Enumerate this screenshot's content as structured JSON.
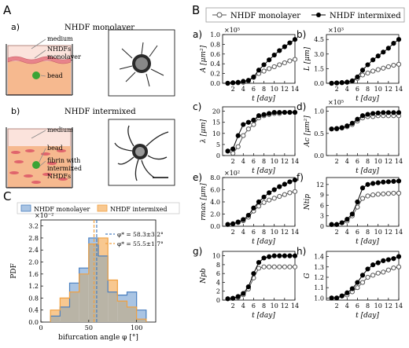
{
  "panels": {
    "A": "A",
    "B": "B",
    "C": "C",
    "a": "a)",
    "b": "b)",
    "c": "c)",
    "d": "d)",
    "e": "e)",
    "f": "f)",
    "g": "g)",
    "h": "h)"
  },
  "schematic": {
    "monolayer_title": "NHDF monolayer",
    "intermixed_title": "NHDF intermixed",
    "mono_labels": [
      "medium",
      "NHDFs",
      "monolayer",
      "bead"
    ],
    "inter_labels": [
      "medium",
      "bead",
      "fibrin with",
      "intermixed",
      "NHDFs"
    ]
  },
  "legend_B": [
    {
      "name": "NHDF monolayer",
      "marker": "open"
    },
    {
      "name": "NHDF intermixed",
      "marker": "filled"
    }
  ],
  "colors": {
    "monolayer_hist": "#a9c4e3",
    "monolayer_edge": "#4a7fbf",
    "intermixed_hist": "#f8c890",
    "intermixed_edge": "#f0a040",
    "overlap": "#b9b4a6",
    "line_open": "#555555",
    "line_filled": "#000000"
  },
  "chart_data": [
    {
      "panel": "a)",
      "type": "line",
      "ylabel": "A [μm²]",
      "exponent": "×10⁵",
      "xlabel": "t [day]",
      "xlim": [
        0,
        14
      ],
      "ylim": [
        0,
        1.0
      ],
      "xticks": [
        2,
        4,
        6,
        8,
        10,
        12,
        14
      ],
      "yticks": [
        0.0,
        0.2,
        0.4,
        0.6,
        0.8,
        1.0
      ],
      "ytick_labels": [
        "0.0",
        "0.2",
        "0.4",
        "0.6",
        "0.8",
        "1.0"
      ],
      "x": [
        1,
        2,
        3,
        4,
        5,
        6,
        7,
        8,
        9,
        10,
        11,
        12,
        13,
        14
      ],
      "series": [
        {
          "name": "NHDF monolayer",
          "values": [
            0.0,
            0.01,
            0.01,
            0.02,
            0.05,
            0.12,
            0.2,
            0.25,
            0.3,
            0.34,
            0.38,
            0.42,
            0.46,
            0.49
          ]
        },
        {
          "name": "NHDF intermixed",
          "values": [
            0.0,
            0.01,
            0.02,
            0.04,
            0.06,
            0.13,
            0.27,
            0.38,
            0.48,
            0.58,
            0.67,
            0.75,
            0.83,
            0.9
          ]
        }
      ]
    },
    {
      "panel": "b)",
      "type": "line",
      "ylabel": "L [μm]",
      "exponent": "×10³",
      "xlabel": "t [day]",
      "xlim": [
        0,
        14
      ],
      "ylim": [
        0,
        5.0
      ],
      "xticks": [
        2,
        4,
        6,
        8,
        10,
        12,
        14
      ],
      "yticks": [
        0.0,
        1.5,
        3.0,
        4.5
      ],
      "ytick_labels": [
        "0.0",
        "1.5",
        "3.0",
        "4.5"
      ],
      "x": [
        1,
        2,
        3,
        4,
        5,
        6,
        7,
        8,
        9,
        10,
        11,
        12,
        13,
        14
      ],
      "series": [
        {
          "name": "NHDF monolayer",
          "values": [
            0.0,
            0.03,
            0.06,
            0.1,
            0.2,
            0.5,
            0.85,
            1.05,
            1.25,
            1.4,
            1.55,
            1.7,
            1.85,
            1.95
          ]
        },
        {
          "name": "NHDF intermixed",
          "values": [
            0.0,
            0.03,
            0.07,
            0.12,
            0.25,
            0.65,
            1.35,
            1.9,
            2.4,
            2.8,
            3.2,
            3.6,
            4.1,
            4.5
          ]
        }
      ]
    },
    {
      "panel": "c)",
      "type": "line",
      "ylabel": "λ [μm]",
      "exponent": "",
      "xlabel": "t [day]",
      "xlim": [
        0,
        14
      ],
      "ylim": [
        0,
        22
      ],
      "xticks": [
        2,
        4,
        6,
        8,
        10,
        12,
        14
      ],
      "yticks": [
        0,
        5,
        10,
        15,
        20
      ],
      "ytick_labels": [
        "0",
        "5",
        "10",
        "15",
        "20"
      ],
      "x": [
        1,
        2,
        3,
        4,
        5,
        6,
        7,
        8,
        9,
        10,
        11,
        12,
        13,
        14
      ],
      "series": [
        {
          "name": "NHDF monolayer",
          "values": [
            2,
            1,
            4,
            9,
            12,
            14,
            17,
            18,
            18.5,
            19,
            19,
            19.5,
            19.5,
            19.5
          ]
        },
        {
          "name": "NHDF intermixed",
          "values": [
            2,
            3,
            9,
            14,
            15,
            16,
            18,
            18.5,
            19,
            19.5,
            19.5,
            19.5,
            19.5,
            19.5
          ]
        }
      ]
    },
    {
      "panel": "d)",
      "type": "line",
      "ylabel": "Ac [μm²]",
      "exponent": "×10⁵",
      "xlabel": "t [day]",
      "xlim": [
        0,
        14
      ],
      "ylim": [
        0,
        1.1
      ],
      "xticks": [
        2,
        4,
        6,
        8,
        10,
        12,
        14
      ],
      "yticks": [
        0.0,
        0.5,
        1.0
      ],
      "ytick_labels": [
        "0.0",
        "0.5",
        "1.0"
      ],
      "x": [
        1,
        2,
        3,
        4,
        5,
        6,
        7,
        8,
        9,
        10,
        11,
        12,
        13,
        14
      ],
      "series": [
        {
          "name": "NHDF monolayer",
          "values": [
            0.6,
            0.6,
            0.62,
            0.65,
            0.7,
            0.78,
            0.85,
            0.88,
            0.88,
            0.9,
            0.9,
            0.9,
            0.9,
            0.9
          ]
        },
        {
          "name": "NHDF intermixed",
          "values": [
            0.6,
            0.61,
            0.63,
            0.67,
            0.73,
            0.82,
            0.9,
            0.93,
            0.95,
            0.96,
            0.97,
            0.97,
            0.97,
            0.97
          ]
        }
      ]
    },
    {
      "panel": "e)",
      "type": "line",
      "ylabel": "rmax [μm]",
      "exponent": "×10²",
      "xlabel": "t [day]",
      "xlim": [
        0,
        14
      ],
      "ylim": [
        0,
        8.0
      ],
      "xticks": [
        2,
        4,
        6,
        8,
        10,
        12,
        14
      ],
      "yticks": [
        0.0,
        2.0,
        4.0,
        6.0,
        8.0
      ],
      "ytick_labels": [
        "0.0",
        "2.0",
        "4.0",
        "6.0",
        "8.0"
      ],
      "x": [
        1,
        2,
        3,
        4,
        5,
        6,
        7,
        8,
        9,
        10,
        11,
        12,
        13,
        14
      ],
      "series": [
        {
          "name": "NHDF monolayer",
          "values": [
            0.3,
            0.4,
            0.6,
            0.9,
            1.5,
            2.5,
            3.3,
            3.9,
            4.3,
            4.6,
            4.9,
            5.2,
            5.5,
            5.7
          ]
        },
        {
          "name": "NHDF intermixed",
          "values": [
            0.3,
            0.4,
            0.7,
            1.1,
            1.8,
            3.0,
            4.0,
            4.8,
            5.5,
            6.0,
            6.5,
            6.9,
            7.3,
            7.6
          ]
        }
      ]
    },
    {
      "panel": "f)",
      "type": "line",
      "ylabel": "Ntip",
      "exponent": "",
      "xlabel": "t [day]",
      "xlim": [
        0,
        14
      ],
      "ylim": [
        0,
        14
      ],
      "xticks": [
        2,
        4,
        6,
        8,
        10,
        12,
        14
      ],
      "yticks": [
        0,
        3,
        6,
        9,
        12
      ],
      "ytick_labels": [
        "0",
        "3",
        "6",
        "9",
        "12"
      ],
      "x": [
        1,
        2,
        3,
        4,
        5,
        6,
        7,
        8,
        9,
        10,
        11,
        12,
        13,
        14
      ],
      "series": [
        {
          "name": "NHDF monolayer",
          "values": [
            0.5,
            0.5,
            1,
            1.5,
            3,
            5.5,
            8,
            8.7,
            9,
            9.2,
            9.3,
            9.4,
            9.5,
            9.5
          ]
        },
        {
          "name": "NHDF intermixed",
          "values": [
            0.5,
            0.5,
            1,
            2,
            3.5,
            7,
            11,
            12,
            12.3,
            12.5,
            12.7,
            12.8,
            12.9,
            13
          ]
        }
      ]
    },
    {
      "panel": "g)",
      "type": "line",
      "ylabel": "Npb",
      "exponent": "",
      "xlabel": "t [day]",
      "xlim": [
        0,
        14
      ],
      "ylim": [
        0,
        11
      ],
      "xticks": [
        2,
        4,
        6,
        8,
        10,
        12,
        14
      ],
      "yticks": [
        0,
        2,
        4,
        6,
        8,
        10
      ],
      "ytick_labels": [
        "0",
        "2",
        "4",
        "6",
        "8",
        "10"
      ],
      "x": [
        1,
        2,
        3,
        4,
        5,
        6,
        7,
        8,
        9,
        10,
        11,
        12,
        13,
        14
      ],
      "series": [
        {
          "name": "NHDF monolayer",
          "values": [
            0.3,
            0.4,
            0.6,
            1.2,
            2.5,
            5,
            7.2,
            7.5,
            7.5,
            7.5,
            7.5,
            7.5,
            7.5,
            7.5
          ]
        },
        {
          "name": "NHDF intermixed",
          "values": [
            0.3,
            0.4,
            0.8,
            1.5,
            3.0,
            6,
            8.5,
            9.5,
            9.8,
            10,
            10,
            10,
            10,
            10
          ]
        }
      ]
    },
    {
      "panel": "h)",
      "type": "line",
      "ylabel": "G",
      "exponent": "",
      "xlabel": "t [day]",
      "xlim": [
        0,
        14
      ],
      "ylim": [
        0.98,
        1.45
      ],
      "xticks": [
        2,
        4,
        6,
        8,
        10,
        12,
        14
      ],
      "yticks": [
        1.0,
        1.1,
        1.2,
        1.3,
        1.4
      ],
      "ytick_labels": [
        "1.0",
        "1.1",
        "1.2",
        "1.3",
        "1.4"
      ],
      "x": [
        1,
        2,
        3,
        4,
        5,
        6,
        7,
        8,
        9,
        10,
        11,
        12,
        13,
        14
      ],
      "series": [
        {
          "name": "NHDF monolayer",
          "values": [
            1.0,
            1.0,
            1.02,
            1.03,
            1.06,
            1.1,
            1.15,
            1.2,
            1.22,
            1.24,
            1.25,
            1.27,
            1.29,
            1.3
          ]
        },
        {
          "name": "NHDF intermixed",
          "values": [
            1.0,
            1.0,
            1.02,
            1.05,
            1.09,
            1.15,
            1.22,
            1.28,
            1.32,
            1.34,
            1.36,
            1.37,
            1.38,
            1.4
          ]
        }
      ]
    },
    {
      "panel": "C",
      "type": "histogram",
      "ylabel": "PDF",
      "exponent": "×10⁻²",
      "xlabel": "bifurcation angle φ [°]",
      "xlim": [
        0,
        120
      ],
      "ylim": [
        0,
        3.4
      ],
      "xticks": [
        0,
        50,
        100
      ],
      "yticks": [
        0.0,
        0.4,
        0.8,
        1.2,
        1.6,
        2.0,
        2.4,
        2.8,
        3.2
      ],
      "ytick_labels": [
        "0.0",
        "0.4",
        "0.8",
        "1.2",
        "1.6",
        "2.0",
        "2.4",
        "2.8",
        "3.2"
      ],
      "legend": [
        "NHDF monolayer",
        "NHDF intermixed"
      ],
      "bin_edges": [
        10,
        20,
        30,
        40,
        50,
        60,
        70,
        80,
        90,
        100,
        110
      ],
      "series": [
        {
          "name": "NHDF monolayer",
          "values": [
            0.2,
            0.5,
            1.3,
            1.8,
            2.8,
            2.2,
            1.0,
            0.9,
            1.0,
            0.4
          ]
        },
        {
          "name": "NHDF intermixed",
          "values": [
            0.4,
            0.8,
            1.0,
            1.6,
            2.6,
            2.8,
            1.4,
            0.7,
            0.5,
            0.1
          ]
        }
      ],
      "mean_lines": [
        {
          "name": "NHDF monolayer",
          "value": 58.3,
          "label": "φ* = 58.3±3.2°"
        },
        {
          "name": "NHDF intermixed",
          "value": 55.5,
          "label": "φ* = 55.5±1.7°"
        }
      ]
    }
  ]
}
